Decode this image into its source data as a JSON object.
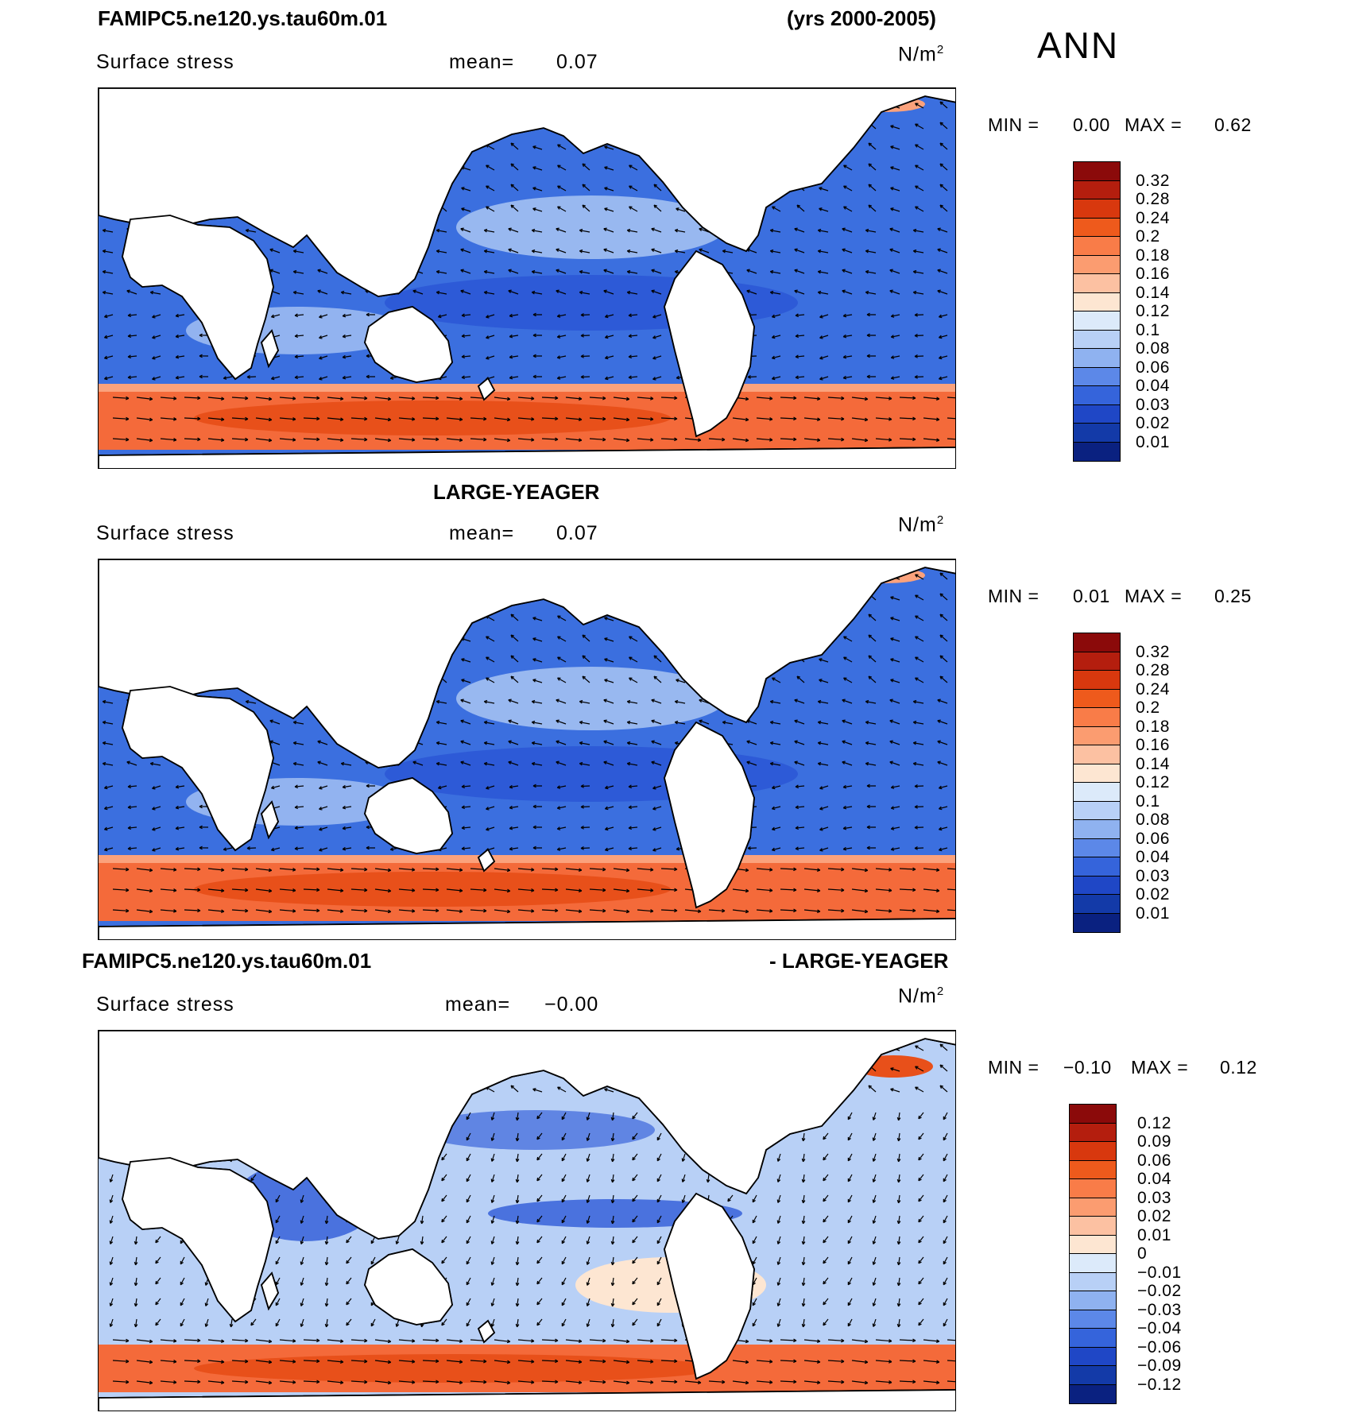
{
  "header": {
    "case_name": "FAMIPC5.ne120.ys.tau60m.01",
    "years": "(yrs 2000-2005)",
    "season": "ANN"
  },
  "panels": [
    {
      "title": "",
      "field": "Surface stress",
      "mean_label": "mean=",
      "mean_value": "0.07",
      "units_base": "N/m",
      "units_exp": "2",
      "min_label": "MIN =",
      "min_value": "0.00",
      "max_label": "MAX =",
      "max_value": "0.62",
      "colorbar_labels": [
        "0.32",
        "0.28",
        "0.24",
        "0.2",
        "0.18",
        "0.16",
        "0.14",
        "0.12",
        "0.1",
        "0.08",
        "0.06",
        "0.04",
        "0.03",
        "0.02",
        "0.01"
      ],
      "colorbar_colors": [
        "#8b0a0a",
        "#b41e0e",
        "#d8380e",
        "#ee5a1c",
        "#f97c48",
        "#fb9c70",
        "#fcc1a2",
        "#fde6d2",
        "#dceafa",
        "#b8d0f6",
        "#8fb2f0",
        "#5c88e8",
        "#3564db",
        "#1f47c6",
        "#133aa8",
        "#0a2180"
      ]
    },
    {
      "title": "LARGE-YEAGER",
      "field": "Surface stress",
      "mean_label": "mean=",
      "mean_value": "0.07",
      "units_base": "N/m",
      "units_exp": "2",
      "min_label": "MIN =",
      "min_value": "0.01",
      "max_label": "MAX =",
      "max_value": "0.25",
      "colorbar_labels": [
        "0.32",
        "0.28",
        "0.24",
        "0.2",
        "0.18",
        "0.16",
        "0.14",
        "0.12",
        "0.1",
        "0.08",
        "0.06",
        "0.04",
        "0.03",
        "0.02",
        "0.01"
      ],
      "colorbar_colors": [
        "#8b0a0a",
        "#b41e0e",
        "#d8380e",
        "#ee5a1c",
        "#f97c48",
        "#fb9c70",
        "#fcc1a2",
        "#fde6d2",
        "#dceafa",
        "#b8d0f6",
        "#8fb2f0",
        "#5c88e8",
        "#3564db",
        "#1f47c6",
        "#133aa8",
        "#0a2180"
      ]
    },
    {
      "title_left": "FAMIPC5.ne120.ys.tau60m.01",
      "title_right": "- LARGE-YEAGER",
      "field": "Surface stress",
      "mean_label": "mean=",
      "mean_value": "−0.00",
      "units_base": "N/m",
      "units_exp": "2",
      "min_label": "MIN =",
      "min_value": "−0.10",
      "max_label": "MAX =",
      "max_value": "0.12",
      "colorbar_labels": [
        "0.12",
        "0.09",
        "0.06",
        "0.04",
        "0.03",
        "0.02",
        "0.01",
        "0",
        "−0.01",
        "−0.02",
        "−0.03",
        "−0.04",
        "−0.06",
        "−0.09",
        "−0.12"
      ],
      "colorbar_colors": [
        "#8b0a0a",
        "#b41e0e",
        "#d8380e",
        "#ee5a1c",
        "#f97c48",
        "#fb9c70",
        "#fcc1a2",
        "#fde6d2",
        "#dceafa",
        "#b8d0f6",
        "#8fb2f0",
        "#5c88e8",
        "#3564db",
        "#1f47c6",
        "#133aa8",
        "#0a2180"
      ]
    }
  ],
  "map_fill": {
    "ocean_colors": [
      "#2b55d4",
      "#3b6fdf",
      "#4a72de",
      "#b8d0f6"
    ],
    "storm_track_colors": [
      "#e8501a",
      "#f46a3a",
      "#fba27c"
    ],
    "land_color": "#ffffff",
    "coast_color": "#000000",
    "arrow_color": "#000000"
  }
}
